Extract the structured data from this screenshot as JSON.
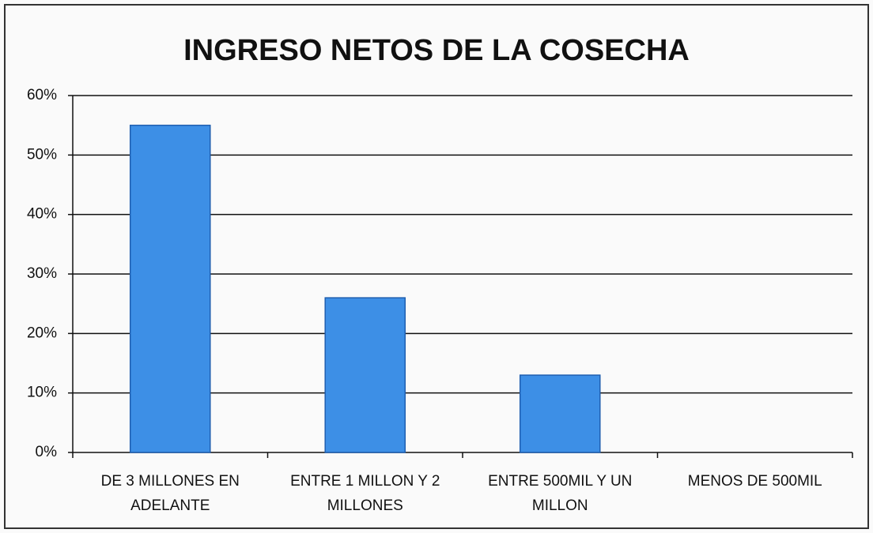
{
  "chart_data": {
    "type": "bar",
    "title": "INGRESO NETOS DE LA COSECHA",
    "categories": [
      "DE 3 MILLONES EN ADELANTE",
      "ENTRE 1 MILLON Y 2 MILLONES",
      "ENTRE 500MIL Y UN MILLON",
      "MENOS DE 500MIL"
    ],
    "values": [
      55,
      26,
      13,
      0
    ],
    "color": "#3d8fe6",
    "ylim": [
      0,
      60
    ],
    "yticks": [
      {
        "value": 0,
        "label": "0%"
      },
      {
        "value": 10,
        "label": "10%"
      },
      {
        "value": 20,
        "label": "20%"
      },
      {
        "value": 30,
        "label": "30%"
      },
      {
        "value": 40,
        "label": "40%"
      },
      {
        "value": 50,
        "label": "50%"
      },
      {
        "value": 60,
        "label": "60%"
      }
    ],
    "grid": true
  }
}
